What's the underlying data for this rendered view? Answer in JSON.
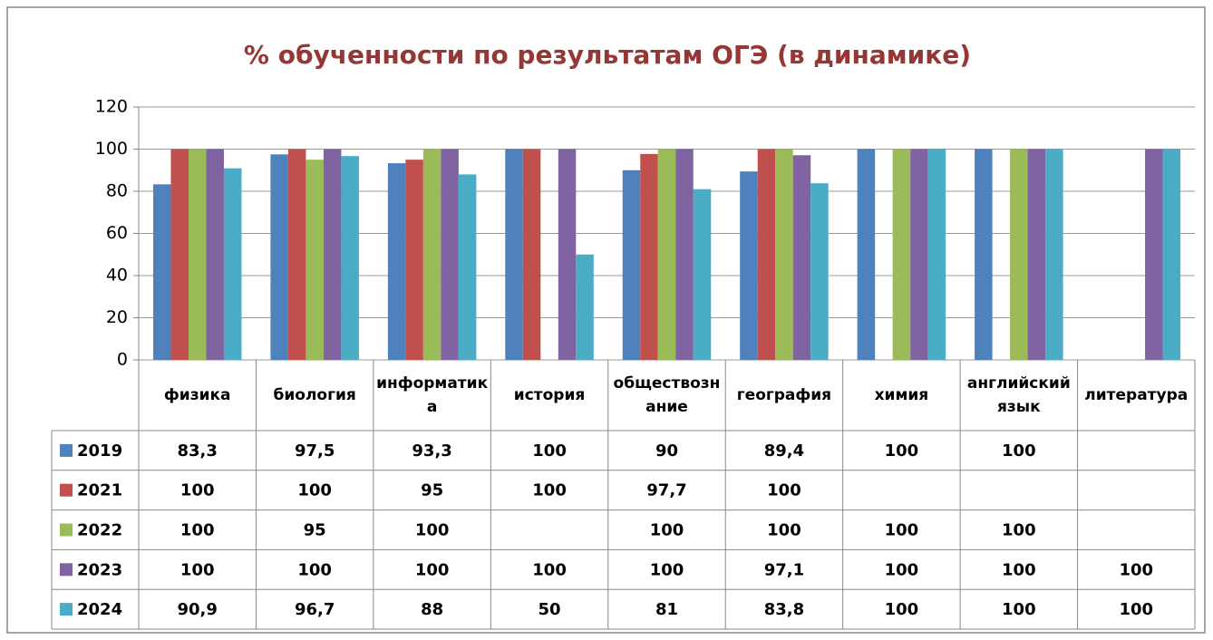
{
  "chart_data": {
    "type": "bar",
    "title": "% обученности по результатам ОГЭ (в динамике)",
    "categories": [
      "физика",
      "биология",
      "информатика",
      "история",
      "обществознание",
      "география",
      "химия",
      "английский язык",
      "литература"
    ],
    "series": [
      {
        "name": "2019",
        "color": "#4f81bd",
        "values": [
          83.3,
          97.5,
          93.3,
          100,
          90,
          89.4,
          100,
          100,
          null
        ],
        "value_labels": [
          "83,3",
          "97,5",
          "93,3",
          "100",
          "90",
          "89,4",
          "100",
          "100",
          null
        ]
      },
      {
        "name": "2021",
        "color": "#c0504d",
        "values": [
          100,
          100,
          95,
          100,
          97.7,
          100,
          null,
          null,
          null
        ],
        "value_labels": [
          "100",
          "100",
          "95",
          "100",
          "97,7",
          "100",
          null,
          null,
          null
        ]
      },
      {
        "name": "2022",
        "color": "#9bbb59",
        "values": [
          100,
          95,
          100,
          null,
          100,
          100,
          100,
          100,
          null
        ],
        "value_labels": [
          "100",
          "95",
          "100",
          null,
          "100",
          "100",
          "100",
          "100",
          null
        ]
      },
      {
        "name": "2023",
        "color": "#8064a2",
        "values": [
          100,
          100,
          100,
          100,
          100,
          97.1,
          100,
          100,
          100
        ],
        "value_labels": [
          "100",
          "100",
          "100",
          "100",
          "100",
          "97,1",
          "100",
          "100",
          "100"
        ]
      },
      {
        "name": "2024",
        "color": "#4bacc6",
        "values": [
          90.9,
          96.7,
          88,
          50,
          81,
          83.8,
          100,
          100,
          100
        ],
        "value_labels": [
          "90,9",
          "96,7",
          "88",
          "50",
          "81",
          "83,8",
          "100",
          "100",
          "100"
        ]
      }
    ],
    "ylim": [
      0,
      120
    ],
    "yticks": [
      0,
      20,
      40,
      60,
      80,
      100,
      120
    ],
    "grid": true
  }
}
